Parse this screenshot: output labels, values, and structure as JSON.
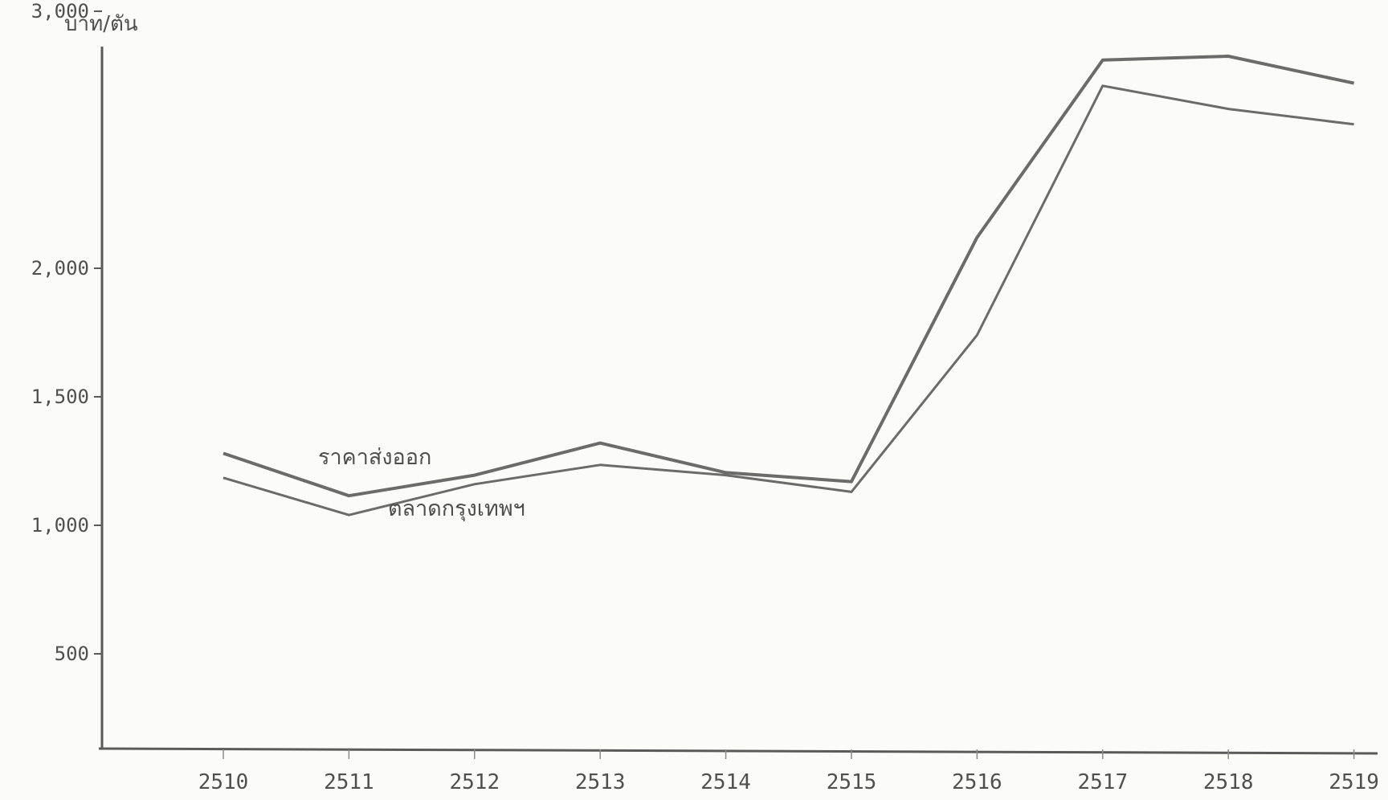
{
  "chart_data": {
    "type": "line",
    "title": "",
    "xlabel": "",
    "ylabel": "บาท/ตัน",
    "x": [
      "2510",
      "2511",
      "2512",
      "2513",
      "2514",
      "2515",
      "2516",
      "2517",
      "2518",
      "2519"
    ],
    "y_ticks": [
      "500",
      "1,000",
      "1,500",
      "2,000",
      "3,000"
    ],
    "series": [
      {
        "name": "ราคาส่งออก",
        "values": [
          1280,
          1115,
          1195,
          1320,
          1205,
          1170,
          2120,
          2810,
          2825,
          2720
        ]
      },
      {
        "name": "ตลาดกรุงเทพฯ",
        "values": [
          1185,
          1040,
          1160,
          1235,
          1195,
          1130,
          1740,
          2710,
          2620,
          2560
        ]
      }
    ],
    "grid": false,
    "legend": "inline labels",
    "colors": {
      "line": "#6b6b6b",
      "axis": "#5a5a5a"
    }
  }
}
